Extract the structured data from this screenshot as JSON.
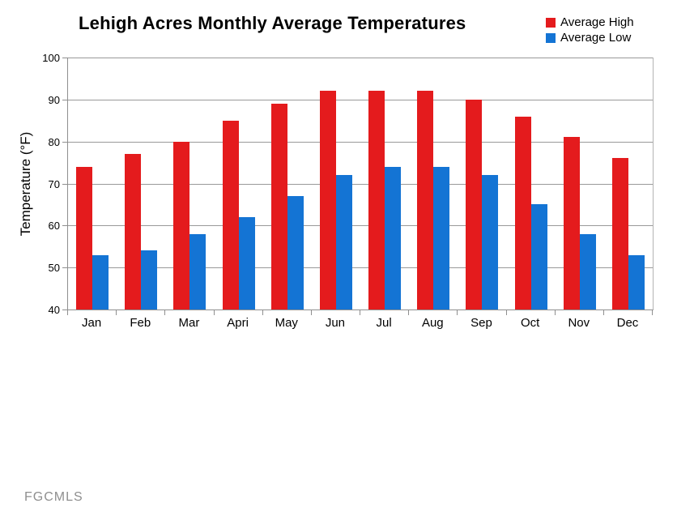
{
  "watermark": "FGCMLS",
  "colors": {
    "high": "#e41b1d",
    "low": "#1474d4",
    "gridline": "#999999",
    "axis": "#8f8f8f",
    "watermark_text": "#8f8f8f"
  },
  "chart_data": {
    "type": "bar",
    "title": "Lehigh Acres Monthly Average Temperatures",
    "categories": [
      "Jan",
      "Feb",
      "Mar",
      "Apri",
      "May",
      "Jun",
      "Jul",
      "Aug",
      "Sep",
      "Oct",
      "Nov",
      "Dec"
    ],
    "series": [
      {
        "name": "Average High",
        "color": "#e41b1d",
        "values": [
          74,
          77,
          80,
          85,
          89,
          92,
          92,
          92,
          90,
          86,
          81,
          76
        ]
      },
      {
        "name": "Average Low",
        "color": "#1474d4",
        "values": [
          53,
          54,
          58,
          62,
          67,
          72,
          74,
          74,
          72,
          65,
          58,
          53
        ]
      }
    ],
    "xlabel": "",
    "ylabel": "Temperature (°F)",
    "ylim": [
      40,
      100
    ],
    "yticks": [
      40,
      50,
      60,
      70,
      80,
      90,
      100
    ],
    "grid": true,
    "legend_position": "top-right"
  }
}
